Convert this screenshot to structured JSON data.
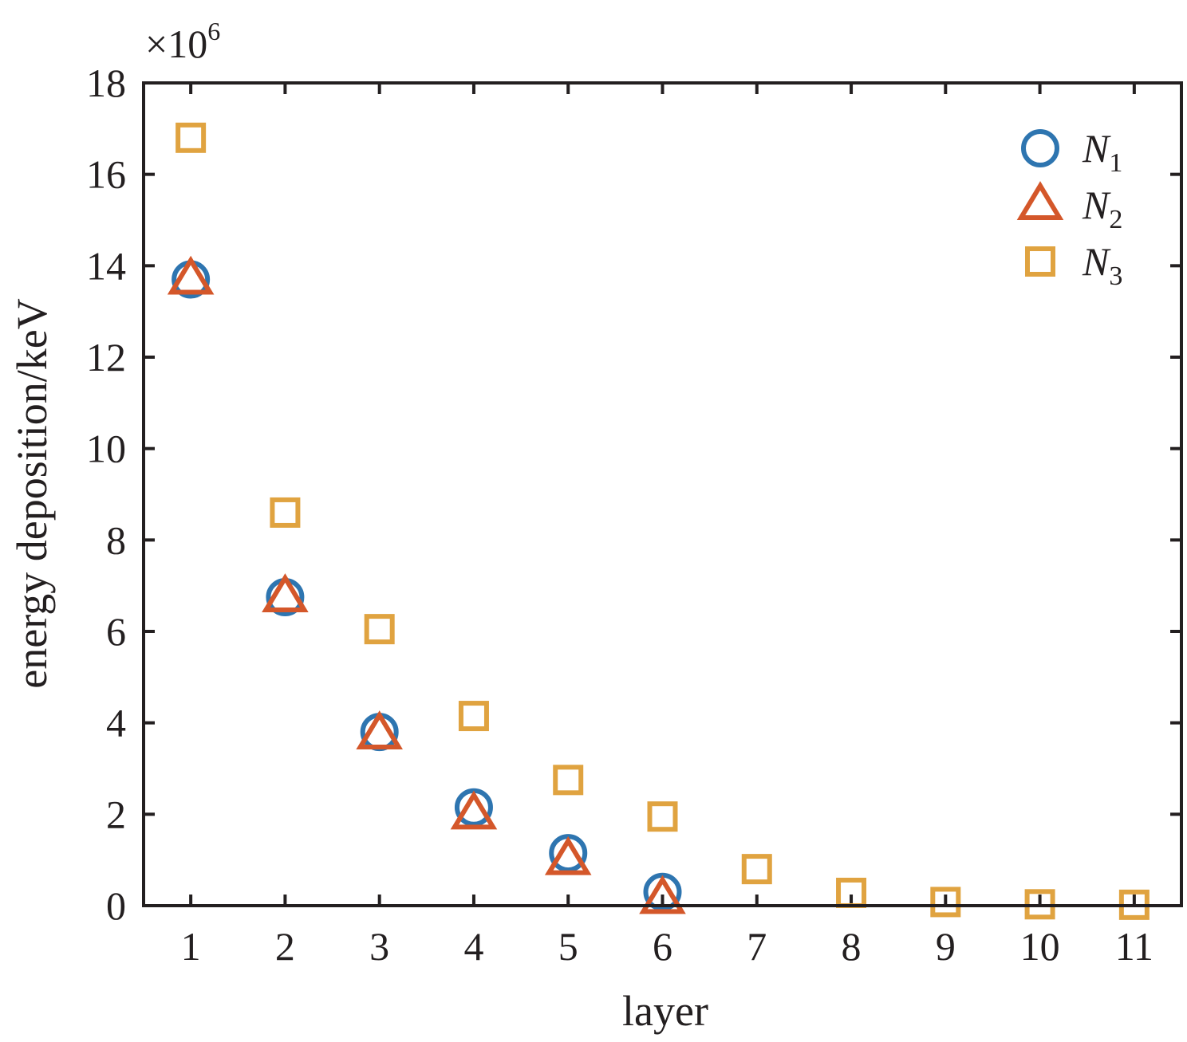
{
  "chart_data": {
    "type": "scatter",
    "xlabel": "layer",
    "ylabel": "energy deposition/keV",
    "y_multiplier": {
      "base": "×10",
      "exponent": "6"
    },
    "xlim": [
      0.5,
      11.5
    ],
    "ylim": [
      0,
      18
    ],
    "x_ticks": [
      1,
      2,
      3,
      4,
      5,
      6,
      7,
      8,
      9,
      10,
      11
    ],
    "y_ticks": [
      0,
      2,
      4,
      6,
      8,
      10,
      12,
      14,
      16,
      18
    ],
    "grid": false,
    "legend_position": "top-right",
    "series": [
      {
        "name": "N",
        "name_sub": "1",
        "marker": "circle",
        "color": "#2e75b0",
        "x": [
          1,
          2,
          3,
          4,
          5,
          6
        ],
        "y": [
          13.7,
          6.75,
          3.8,
          2.15,
          1.15,
          0.3
        ]
      },
      {
        "name": "N",
        "name_sub": "2",
        "marker": "triangle",
        "color": "#d4572a",
        "x": [
          1,
          2,
          3,
          4,
          5,
          6
        ],
        "y": [
          13.7,
          6.75,
          3.75,
          2.0,
          1.0,
          0.15
        ]
      },
      {
        "name": "N",
        "name_sub": "3",
        "marker": "square",
        "color": "#e0a340",
        "x": [
          1,
          2,
          3,
          4,
          5,
          6,
          7,
          8,
          9,
          10,
          11
        ],
        "y": [
          16.8,
          8.6,
          6.05,
          4.15,
          2.75,
          1.95,
          0.8,
          0.28,
          0.08,
          0.03,
          0.02
        ]
      }
    ]
  }
}
